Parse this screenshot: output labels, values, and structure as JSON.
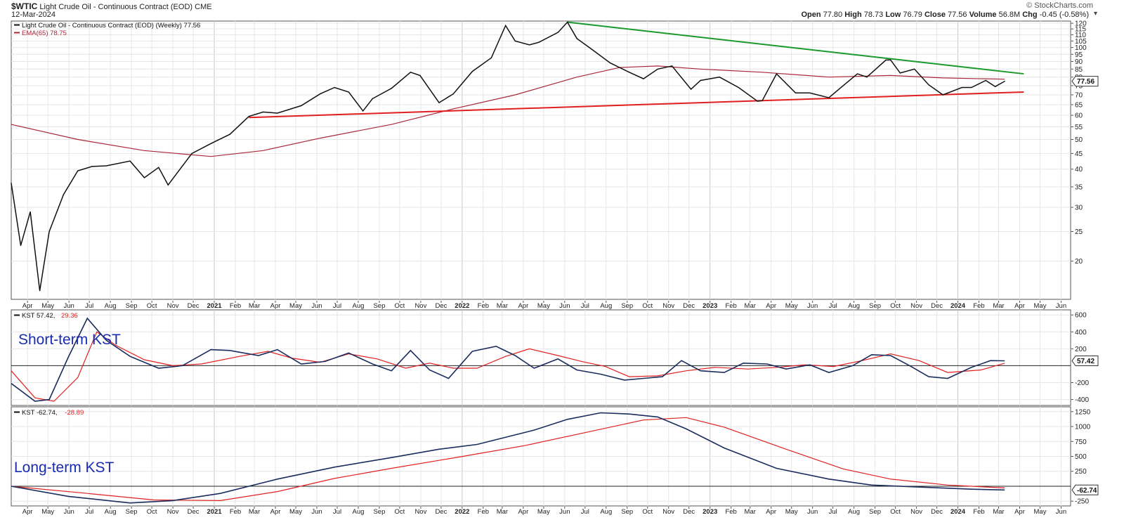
{
  "header": {
    "symbol": "$WTIC",
    "name": "Light Crude Oil - Continuous Contract (EOD)",
    "exchange": "CME",
    "date": "12-Mar-2024",
    "open_label": "Open",
    "open": "77.80",
    "high_label": "High",
    "high": "78.73",
    "low_label": "Low",
    "low": "76.79",
    "close_label": "Close",
    "close": "77.56",
    "volume_label": "Volume",
    "volume": "56.8M",
    "chg_label": "Chg",
    "chg": "-0.45 (-0.58%)",
    "credit": "© StockCharts.com"
  },
  "colors": {
    "price": "#111111",
    "ema": "#a8283a",
    "trend_up": "#e02020",
    "trend_down": "#1a9a2a",
    "kst": "#1b2d5e",
    "kst_signal": "#e02020",
    "annotation": "#1a2cb0"
  },
  "chart_data": [
    {
      "type": "line",
      "legend": [
        {
          "name": "Light Crude Oil - Continuous Contract (EOD) (Weekly)",
          "value": "77.56"
        },
        {
          "name": "EMA(65)",
          "value": "78.75"
        }
      ],
      "last_value_tag": "77.56",
      "y_scale": "log",
      "ylim": [
        15,
        122
      ],
      "y_ticks": [
        20,
        25,
        30,
        35,
        40,
        45,
        50,
        55,
        60,
        65,
        70,
        75,
        80,
        85,
        90,
        95,
        100,
        105,
        110,
        115,
        120
      ],
      "x_range": [
        "2020-03-08",
        "2024-06-15"
      ],
      "series": [
        {
          "name": "Light Crude Oil - Continuous Contract (EOD) (Weekly)",
          "x": [
            "2020-03-08",
            "2020-03-22",
            "2020-04-05",
            "2020-04-19",
            "2020-05-03",
            "2020-05-24",
            "2020-06-14",
            "2020-07-05",
            "2020-07-26",
            "2020-08-30",
            "2020-09-20",
            "2020-10-11",
            "2020-10-25",
            "2020-11-29",
            "2020-12-27",
            "2021-01-24",
            "2021-02-21",
            "2021-03-14",
            "2021-04-04",
            "2021-05-09",
            "2021-06-06",
            "2021-06-27",
            "2021-07-18",
            "2021-08-08",
            "2021-08-22",
            "2021-09-19",
            "2021-10-17",
            "2021-10-31",
            "2021-11-28",
            "2021-12-19",
            "2022-01-16",
            "2022-02-13",
            "2022-03-06",
            "2022-03-20",
            "2022-04-10",
            "2022-04-24",
            "2022-05-22",
            "2022-06-05",
            "2022-06-19",
            "2022-07-10",
            "2022-08-07",
            "2022-09-04",
            "2022-09-25",
            "2022-10-16",
            "2022-11-06",
            "2022-12-04",
            "2022-12-18",
            "2023-01-15",
            "2023-02-12",
            "2023-03-12",
            "2023-03-19",
            "2023-04-09",
            "2023-05-07",
            "2023-05-28",
            "2023-06-25",
            "2023-07-16",
            "2023-08-06",
            "2023-08-20",
            "2023-09-17",
            "2023-09-24",
            "2023-10-08",
            "2023-10-29",
            "2023-11-19",
            "2023-12-10",
            "2024-01-07",
            "2024-01-21",
            "2024-02-11",
            "2024-02-25",
            "2024-03-10"
          ],
          "values": [
            36,
            22.5,
            29,
            16,
            25,
            33,
            39.5,
            40.8,
            41,
            42.5,
            37.5,
            40.5,
            35.5,
            45,
            48.5,
            52,
            59.5,
            61.5,
            61,
            64.5,
            70.5,
            74,
            71.5,
            62,
            68,
            73.5,
            83,
            81,
            66,
            70.5,
            83.5,
            92.5,
            118,
            105,
            102,
            104,
            112,
            121,
            107,
            99,
            89,
            83,
            79,
            85,
            87,
            73,
            78,
            80,
            74,
            66.7,
            67,
            82,
            71,
            71,
            68.5,
            75,
            82,
            80,
            91,
            91,
            82.5,
            85,
            75.5,
            70,
            74,
            74,
            78,
            74.5,
            77.56
          ]
        },
        {
          "name": "EMA(65)",
          "x": [
            "2020-03-08",
            "2020-06-14",
            "2020-09-20",
            "2020-12-27",
            "2021-03-14",
            "2021-06-06",
            "2021-09-19",
            "2021-12-19",
            "2022-03-20",
            "2022-06-19",
            "2022-08-21",
            "2022-10-16",
            "2022-12-18",
            "2023-03-19",
            "2023-06-25",
            "2023-09-24",
            "2023-12-10",
            "2024-03-10"
          ],
          "values": [
            56,
            50,
            46,
            44,
            46,
            50.5,
            56,
            63,
            70,
            80,
            86,
            87,
            85,
            83,
            80,
            81,
            79.5,
            78.75
          ]
        }
      ],
      "trendlines": [
        {
          "name": "support",
          "from": [
            "2021-02-21",
            59
          ],
          "to": [
            "2024-04-07",
            71.5
          ]
        },
        {
          "name": "resistance",
          "from": [
            "2022-06-05",
            121
          ],
          "to": [
            "2024-04-07",
            82
          ]
        }
      ],
      "x_ticks": [
        {
          "label": "Apr",
          "date": "2020-04-01"
        },
        {
          "label": "May",
          "date": "2020-05-01"
        },
        {
          "label": "Jun",
          "date": "2020-06-01"
        },
        {
          "label": "Jul",
          "date": "2020-07-01"
        },
        {
          "label": "Aug",
          "date": "2020-08-01"
        },
        {
          "label": "Sep",
          "date": "2020-09-01"
        },
        {
          "label": "Oct",
          "date": "2020-10-01"
        },
        {
          "label": "Nov",
          "date": "2020-11-01"
        },
        {
          "label": "Dec",
          "date": "2020-12-01"
        },
        {
          "label": "2021",
          "date": "2021-01-01",
          "bold": true
        },
        {
          "label": "Feb",
          "date": "2021-02-01"
        },
        {
          "label": "Mar",
          "date": "2021-03-01"
        },
        {
          "label": "Apr",
          "date": "2021-04-01"
        },
        {
          "label": "May",
          "date": "2021-05-01"
        },
        {
          "label": "Jun",
          "date": "2021-06-01"
        },
        {
          "label": "Jul",
          "date": "2021-07-01"
        },
        {
          "label": "Aug",
          "date": "2021-08-01"
        },
        {
          "label": "Sep",
          "date": "2021-09-01"
        },
        {
          "label": "Oct",
          "date": "2021-10-01"
        },
        {
          "label": "Nov",
          "date": "2021-11-01"
        },
        {
          "label": "Dec",
          "date": "2021-12-01"
        },
        {
          "label": "2022",
          "date": "2022-01-01",
          "bold": true
        },
        {
          "label": "Feb",
          "date": "2022-02-01"
        },
        {
          "label": "Mar",
          "date": "2022-03-01"
        },
        {
          "label": "Apr",
          "date": "2022-04-01"
        },
        {
          "label": "May",
          "date": "2022-05-01"
        },
        {
          "label": "Jun",
          "date": "2022-06-01"
        },
        {
          "label": "Jul",
          "date": "2022-07-01"
        },
        {
          "label": "Aug",
          "date": "2022-08-01"
        },
        {
          "label": "Sep",
          "date": "2022-09-01"
        },
        {
          "label": "Oct",
          "date": "2022-10-01"
        },
        {
          "label": "Nov",
          "date": "2022-11-01"
        },
        {
          "label": "Dec",
          "date": "2022-12-01"
        },
        {
          "label": "2023",
          "date": "2023-01-01",
          "bold": true
        },
        {
          "label": "Feb",
          "date": "2023-02-01"
        },
        {
          "label": "Mar",
          "date": "2023-03-01"
        },
        {
          "label": "Apr",
          "date": "2023-04-01"
        },
        {
          "label": "May",
          "date": "2023-05-01"
        },
        {
          "label": "Jun",
          "date": "2023-06-01"
        },
        {
          "label": "Jul",
          "date": "2023-07-01"
        },
        {
          "label": "Aug",
          "date": "2023-08-01"
        },
        {
          "label": "Sep",
          "date": "2023-09-01"
        },
        {
          "label": "Oct",
          "date": "2023-10-01"
        },
        {
          "label": "Nov",
          "date": "2023-11-01"
        },
        {
          "label": "Dec",
          "date": "2023-12-01"
        },
        {
          "label": "2024",
          "date": "2024-01-01",
          "bold": true
        },
        {
          "label": "Feb",
          "date": "2024-02-01"
        },
        {
          "label": "Mar",
          "date": "2024-03-01"
        },
        {
          "label": "Apr",
          "date": "2024-04-01"
        },
        {
          "label": "May",
          "date": "2024-05-01"
        },
        {
          "label": "Jun",
          "date": "2024-06-01"
        }
      ],
      "grid": true
    },
    {
      "type": "line",
      "annotation": "Short-term KST",
      "legend": [
        {
          "name": "KST",
          "value": "57.42"
        },
        {
          "name": "",
          "value": "29.36"
        }
      ],
      "last_value_tag": "57.42",
      "ylim": [
        -470,
        660
      ],
      "y_ticks": [
        -400,
        -200,
        200,
        400,
        600
      ],
      "zero_line": true,
      "series": [
        {
          "name": "KST",
          "x": [
            "2020-03-08",
            "2020-04-12",
            "2020-05-03",
            "2020-05-31",
            "2020-06-28",
            "2020-07-26",
            "2020-08-30",
            "2020-10-11",
            "2020-11-15",
            "2020-12-27",
            "2021-01-24",
            "2021-03-07",
            "2021-04-04",
            "2021-05-09",
            "2021-06-13",
            "2021-07-18",
            "2021-08-22",
            "2021-09-19",
            "2021-10-17",
            "2021-11-14",
            "2021-12-12",
            "2022-01-16",
            "2022-02-20",
            "2022-03-20",
            "2022-04-17",
            "2022-05-22",
            "2022-06-19",
            "2022-07-24",
            "2022-08-28",
            "2022-09-25",
            "2022-10-23",
            "2022-11-20",
            "2022-12-18",
            "2023-01-22",
            "2023-02-19",
            "2023-03-26",
            "2023-04-23",
            "2023-05-28",
            "2023-06-25",
            "2023-07-30",
            "2023-08-27",
            "2023-09-24",
            "2023-10-22",
            "2023-11-19",
            "2023-12-17",
            "2024-01-21",
            "2024-02-18",
            "2024-03-10"
          ],
          "values": [
            -210,
            -420,
            -400,
            100,
            560,
            300,
            110,
            -30,
            0,
            190,
            180,
            120,
            190,
            20,
            50,
            150,
            20,
            -60,
            180,
            -50,
            -150,
            170,
            230,
            120,
            -30,
            80,
            -50,
            -100,
            -170,
            -150,
            -130,
            60,
            -60,
            -80,
            30,
            20,
            -40,
            10,
            -80,
            0,
            130,
            120,
            0,
            -130,
            -150,
            -20,
            60,
            57.42
          ]
        },
        {
          "name": "",
          "x": [
            "2020-03-08",
            "2020-04-12",
            "2020-05-10",
            "2020-06-14",
            "2020-07-12",
            "2020-08-09",
            "2020-09-20",
            "2020-11-01",
            "2020-12-13",
            "2021-02-07",
            "2021-03-21",
            "2021-04-25",
            "2021-06-06",
            "2021-07-18",
            "2021-08-29",
            "2021-10-10",
            "2021-11-14",
            "2021-12-19",
            "2022-01-23",
            "2022-03-06",
            "2022-04-10",
            "2022-05-22",
            "2022-06-26",
            "2022-07-31",
            "2022-09-04",
            "2022-10-16",
            "2022-11-27",
            "2023-01-08",
            "2023-02-26",
            "2023-04-09",
            "2023-05-21",
            "2023-07-02",
            "2023-08-13",
            "2023-09-24",
            "2023-11-05",
            "2023-12-17",
            "2024-02-04",
            "2024-03-10"
          ],
          "values": [
            -60,
            -380,
            -420,
            -140,
            400,
            240,
            70,
            0,
            20,
            110,
            170,
            90,
            40,
            140,
            80,
            -30,
            30,
            -30,
            -30,
            110,
            200,
            120,
            50,
            -10,
            -130,
            -120,
            -60,
            -20,
            -40,
            -20,
            10,
            -10,
            60,
            140,
            60,
            -80,
            -50,
            29.36
          ]
        }
      ]
    },
    {
      "type": "line",
      "annotation": "Long-term KST",
      "legend": [
        {
          "name": "KST",
          "value": "-62.74"
        },
        {
          "name": "",
          "value": "-28.89"
        }
      ],
      "last_value_tag": "-62.74",
      "ylim": [
        -330,
        1330
      ],
      "y_ticks": [
        -250,
        250,
        500,
        750,
        1000,
        1250
      ],
      "zero_line": true,
      "series": [
        {
          "name": "KST",
          "x": [
            "2020-03-08",
            "2020-05-31",
            "2020-08-30",
            "2020-11-01",
            "2021-01-10",
            "2021-04-04",
            "2021-06-27",
            "2021-09-19",
            "2021-11-28",
            "2022-01-23",
            "2022-04-17",
            "2022-06-05",
            "2022-07-24",
            "2022-09-04",
            "2022-10-16",
            "2022-11-27",
            "2023-01-22",
            "2023-04-09",
            "2023-06-25",
            "2023-08-27",
            "2023-11-19",
            "2024-01-21",
            "2024-03-10"
          ],
          "values": [
            0,
            -170,
            -280,
            -240,
            -120,
            120,
            320,
            480,
            620,
            700,
            940,
            1120,
            1230,
            1210,
            1160,
            960,
            640,
            300,
            120,
            20,
            -20,
            -50,
            -62.74
          ]
        },
        {
          "name": "",
          "x": [
            "2020-03-08",
            "2020-06-28",
            "2020-10-04",
            "2021-01-10",
            "2021-04-04",
            "2021-06-27",
            "2021-09-19",
            "2022-01-02",
            "2022-04-03",
            "2022-07-10",
            "2022-09-25",
            "2022-11-27",
            "2023-01-22",
            "2023-04-23",
            "2023-07-16",
            "2023-09-24",
            "2023-12-17",
            "2024-03-10"
          ],
          "values": [
            0,
            -120,
            -230,
            -240,
            -90,
            130,
            300,
            500,
            680,
            920,
            1110,
            1150,
            990,
            620,
            290,
            120,
            20,
            -28.89
          ]
        }
      ]
    }
  ]
}
